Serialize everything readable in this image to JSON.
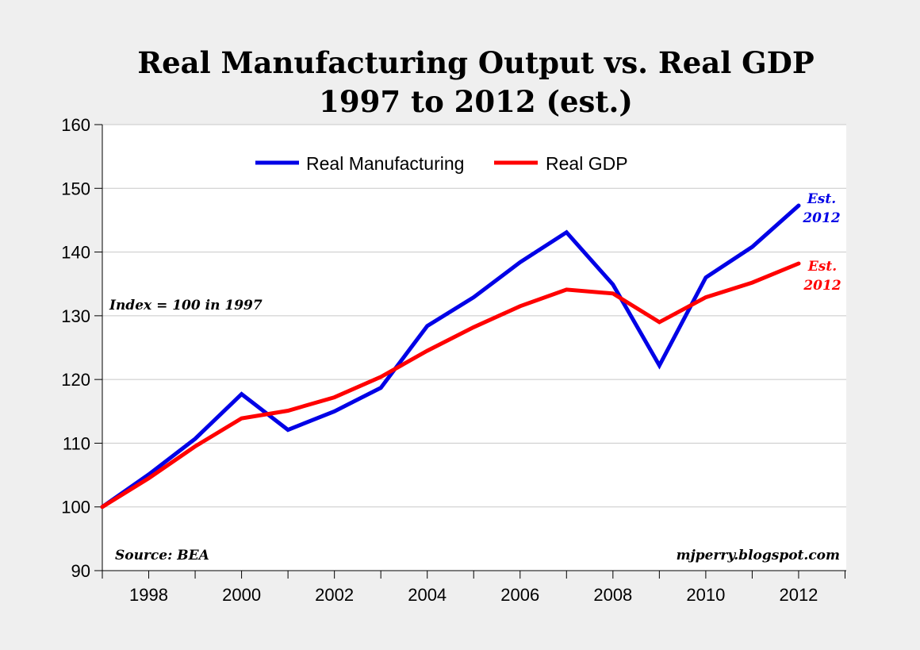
{
  "chart_data": {
    "type": "line",
    "title": "Real Manufacturing Output vs. Real GDP",
    "subtitle": "1997 to 2012 (est.)",
    "xlabel": "",
    "ylabel": "",
    "x": [
      1997,
      1998,
      1999,
      2000,
      2001,
      2002,
      2003,
      2004,
      2005,
      2006,
      2007,
      2008,
      2009,
      2010,
      2011,
      2012
    ],
    "xlim": [
      1997,
      2013
    ],
    "ylim": [
      90,
      160
    ],
    "yticks": [
      90,
      100,
      110,
      120,
      130,
      140,
      150,
      160
    ],
    "xtick_labels": [
      "1998",
      "2000",
      "2002",
      "2004",
      "2006",
      "2008",
      "2010",
      "2012"
    ],
    "grid": true,
    "legend_position": "top-center",
    "series": [
      {
        "name": "Real Manufacturing",
        "color": "#0000e6",
        "values": [
          100,
          105.1,
          110.7,
          117.7,
          112.1,
          115.0,
          118.7,
          128.4,
          132.9,
          138.4,
          143.1,
          134.9,
          122.2,
          136.0,
          140.8,
          147.3
        ]
      },
      {
        "name": "Real GDP",
        "color": "#ff0000",
        "values": [
          100,
          104.5,
          109.5,
          113.9,
          115.1,
          117.2,
          120.4,
          124.5,
          128.2,
          131.5,
          134.1,
          133.5,
          129.0,
          132.9,
          135.2,
          138.2
        ]
      }
    ],
    "annotations": {
      "index_note": "Index = 100 in 1997",
      "source": "Source: BEA",
      "credit": "mjperry.blogspot.com",
      "manufacturing_est_line1": "Est.",
      "manufacturing_est_line2": "2012",
      "gdp_est_line1": "Est.",
      "gdp_est_line2": "2012"
    }
  }
}
